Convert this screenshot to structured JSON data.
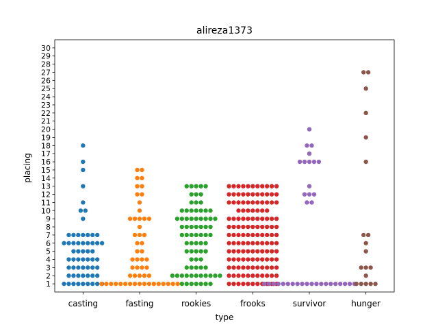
{
  "chart_data": {
    "type": "scatter",
    "title": "alireza1373",
    "xlabel": "type",
    "ylabel": "placing",
    "categories": [
      "casting",
      "fasting",
      "rookies",
      "frooks",
      "survivor",
      "hunger"
    ],
    "ylim": [
      0,
      31
    ],
    "yticks": [
      1,
      2,
      3,
      4,
      5,
      6,
      7,
      8,
      9,
      10,
      11,
      12,
      13,
      14,
      15,
      16,
      17,
      18,
      19,
      20,
      21,
      22,
      23,
      24,
      25,
      26,
      27,
      28,
      29,
      30
    ],
    "colors": [
      "#1f77b4",
      "#ff7f0e",
      "#2ca02c",
      "#d62728",
      "#9467bd",
      "#8c564b"
    ],
    "series": [
      {
        "category": "casting",
        "counts": {
          "1": 9,
          "2": 7,
          "3": 7,
          "4": 7,
          "5": 5,
          "6": 9,
          "7": 7,
          "9": 1,
          "10": 2,
          "11": 1,
          "13": 1,
          "15": 1,
          "16": 1,
          "18": 1
        }
      },
      {
        "category": "fasting",
        "counts": {
          "1": 17,
          "2": 5,
          "3": 4,
          "4": 4,
          "5": 2,
          "6": 2,
          "7": 3,
          "8": 1,
          "9": 5,
          "10": 1,
          "11": 1,
          "12": 2,
          "13": 2,
          "14": 2,
          "15": 2
        }
      },
      {
        "category": "rookies",
        "counts": {
          "1": 7,
          "2": 11,
          "3": 5,
          "4": 3,
          "5": 5,
          "6": 5,
          "7": 7,
          "8": 7,
          "9": 9,
          "10": 7,
          "11": 3,
          "12": 3,
          "13": 5
        }
      },
      {
        "category": "frooks",
        "counts": {
          "1": 11,
          "2": 11,
          "3": 11,
          "4": 11,
          "5": 11,
          "6": 11,
          "7": 11,
          "8": 11,
          "9": 11,
          "10": 7,
          "11": 11,
          "12": 11,
          "13": 11
        }
      },
      {
        "category": "survivor",
        "counts": {
          "1": 20,
          "11": 2,
          "12": 3,
          "13": 1,
          "16": 5,
          "17": 1,
          "18": 2,
          "20": 1
        }
      },
      {
        "category": "hunger",
        "counts": {
          "1": 5,
          "2": 1,
          "3": 3,
          "5": 1,
          "6": 1,
          "7": 2,
          "16": 1,
          "19": 1,
          "22": 1,
          "25": 1,
          "27": 2
        }
      }
    ]
  }
}
